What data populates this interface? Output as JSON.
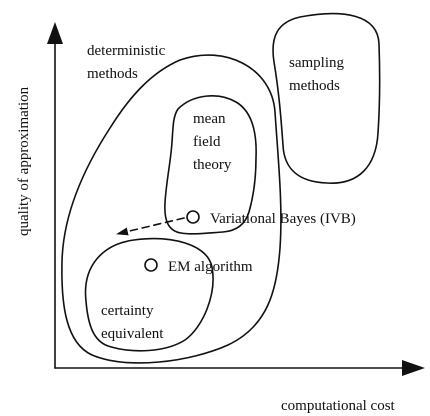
{
  "axes": {
    "y_label": "quality of approximation",
    "x_label": "computational cost"
  },
  "regions": {
    "deterministic": [
      "deterministic",
      "methods"
    ],
    "sampling": [
      "sampling",
      "methods"
    ],
    "mean_field": [
      "mean",
      "field",
      "theory"
    ],
    "certainty": [
      "certainty",
      "equivalent"
    ]
  },
  "points": {
    "ivb": "Variational Bayes (IVB)",
    "em": "EM algorithm"
  }
}
